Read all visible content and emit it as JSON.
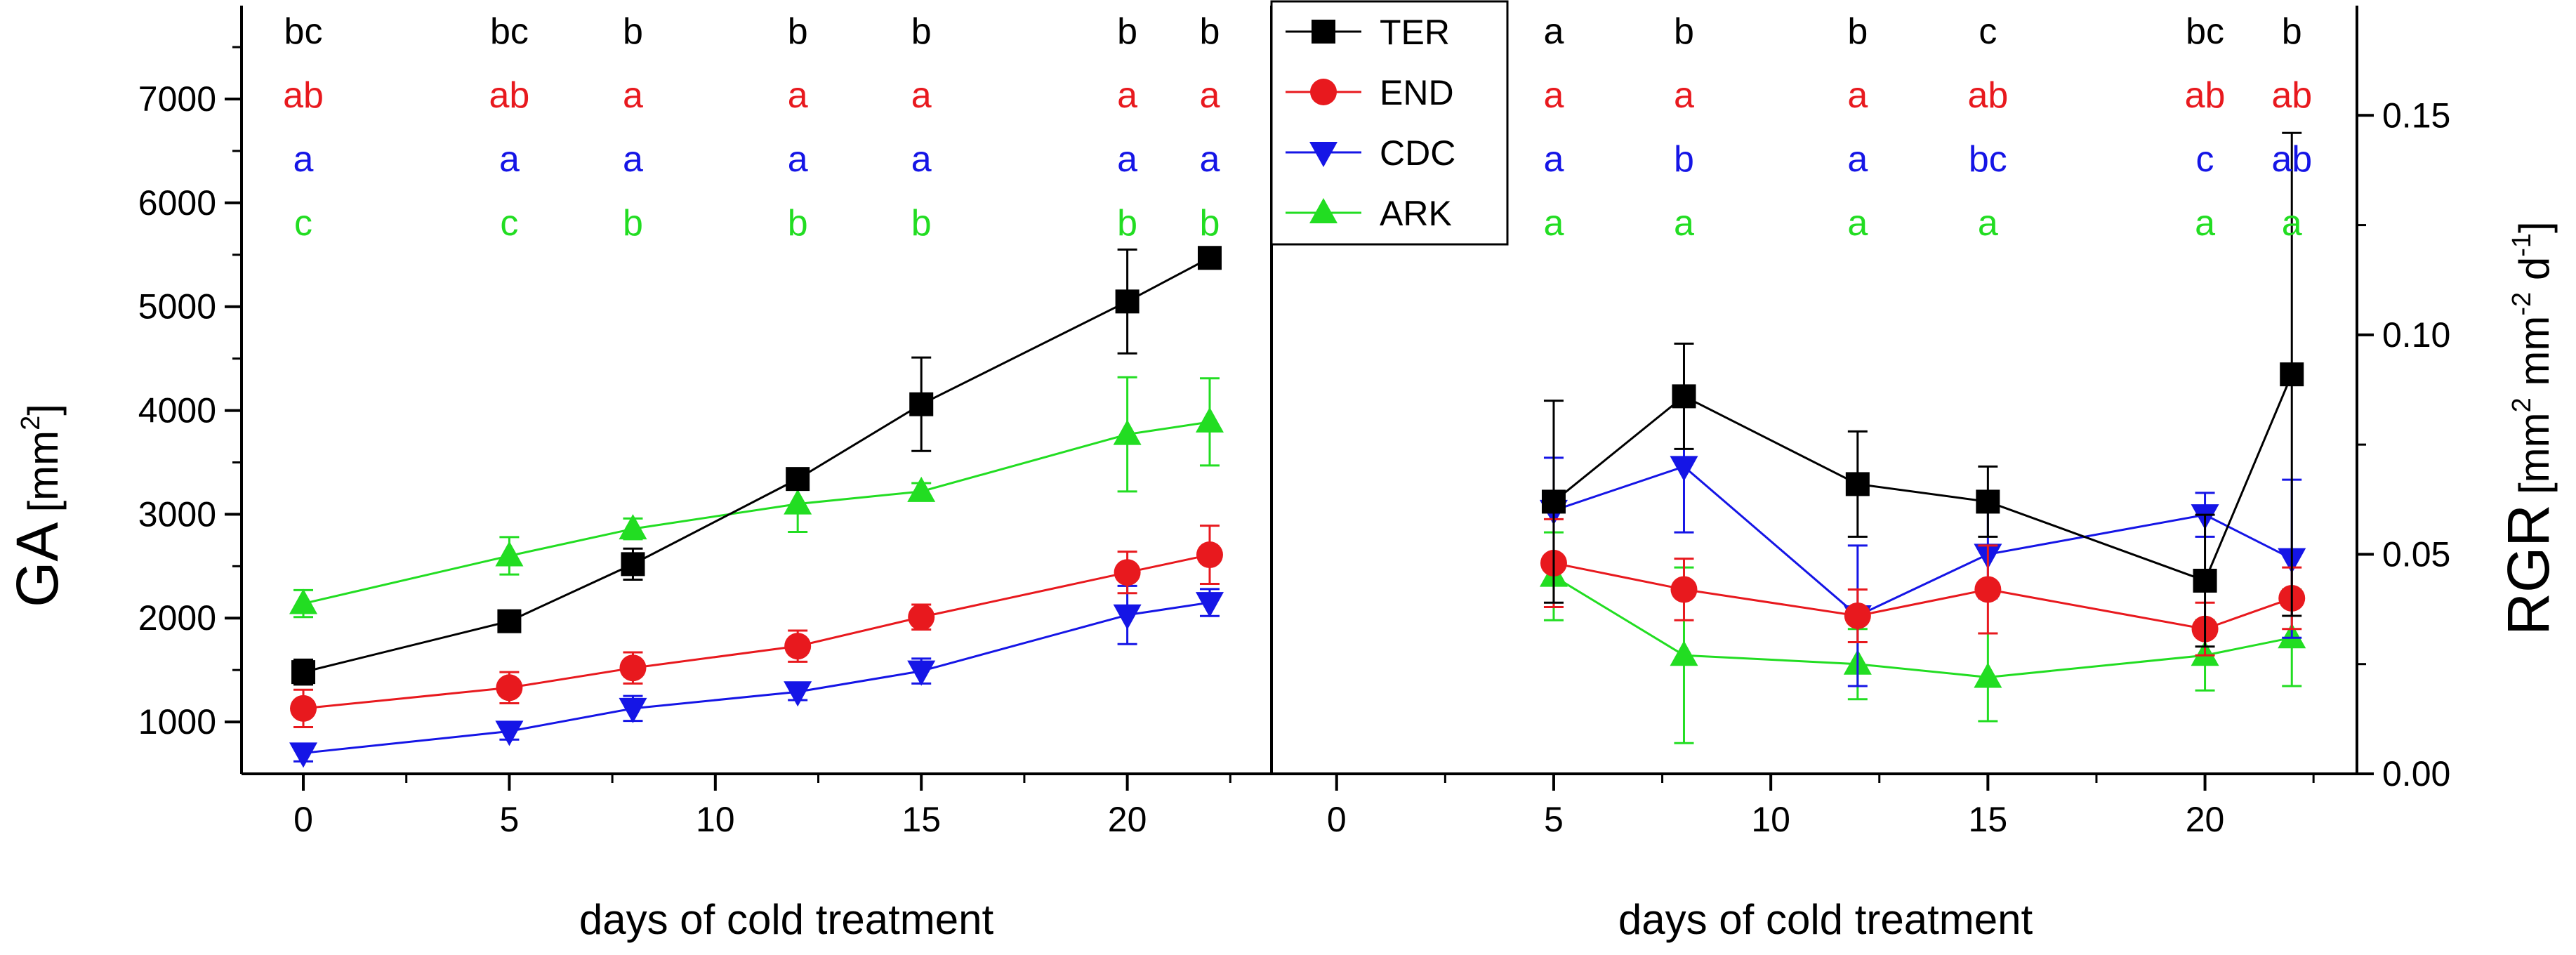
{
  "colors": {
    "TER": "#000000",
    "END": "#e8191e",
    "CDC": "#1515e6",
    "ARK": "#22dd22"
  },
  "legend": [
    {
      "name": "TER",
      "marker": "square"
    },
    {
      "name": "END",
      "marker": "circle"
    },
    {
      "name": "CDC",
      "marker": "triangle-down"
    },
    {
      "name": "ARK",
      "marker": "triangle-up"
    }
  ],
  "chart_data": [
    {
      "type": "line",
      "panel": "left",
      "xlabel": "days of cold treatment",
      "ylabel_main": "GA",
      "ylabel_unit": "[mm",
      "ylabel_sup": "2",
      "ylabel_end": "]",
      "xlim": [
        -1.5,
        23.5
      ],
      "ylim": [
        500,
        7900
      ],
      "xticks": [
        0,
        5,
        10,
        15,
        20
      ],
      "yticks": [
        1000,
        2000,
        3000,
        4000,
        5000,
        6000,
        7000
      ],
      "x": [
        0,
        5,
        8,
        12,
        15,
        20,
        22
      ],
      "series": [
        {
          "name": "TER",
          "values": [
            1480,
            1970,
            2520,
            3340,
            4060,
            5050,
            5470
          ],
          "err": [
            120,
            80,
            150,
            80,
            450,
            500,
            100
          ]
        },
        {
          "name": "END",
          "values": [
            1130,
            1330,
            1520,
            1730,
            2010,
            2440,
            2610
          ],
          "err": [
            180,
            150,
            150,
            150,
            120,
            200,
            280
          ]
        },
        {
          "name": "CDC",
          "values": [
            700,
            910,
            1130,
            1290,
            1490,
            2030,
            2150
          ],
          "err": [
            80,
            80,
            120,
            80,
            120,
            280,
            130
          ]
        },
        {
          "name": "ARK",
          "values": [
            2140,
            2600,
            2860,
            3100,
            3220,
            3770,
            3890
          ],
          "err": [
            130,
            180,
            100,
            270,
            80,
            550,
            420
          ]
        }
      ],
      "letters": [
        {
          "series": "TER",
          "labels": [
            "bc",
            "bc",
            "b",
            "b",
            "b",
            "b",
            "b"
          ]
        },
        {
          "series": "END",
          "labels": [
            "ab",
            "ab",
            "a",
            "a",
            "a",
            "a",
            "a"
          ]
        },
        {
          "series": "CDC",
          "labels": [
            "a",
            "a",
            "a",
            "a",
            "a",
            "a",
            "a"
          ]
        },
        {
          "series": "ARK",
          "labels": [
            "c",
            "c",
            "b",
            "b",
            "b",
            "b",
            "b"
          ]
        }
      ]
    },
    {
      "type": "line",
      "panel": "right",
      "xlabel": "days of cold treatment",
      "ylabel_main": "RGR",
      "ylabel_unit": "[mm",
      "ylabel_sup1": "2",
      "ylabel_mid1": " mm",
      "ylabel_sup2": "-2",
      "ylabel_mid2": " d",
      "ylabel_sup3": "-1",
      "ylabel_end": "]",
      "xlim": [
        -1.5,
        23.5
      ],
      "ylim": [
        0,
        0.175
      ],
      "xticks": [
        0,
        5,
        10,
        15,
        20
      ],
      "yticks": [
        "0.00",
        "0.05",
        "0.10",
        "0.15"
      ],
      "ytick_values": [
        0,
        0.05,
        0.1,
        0.15
      ],
      "x": [
        5,
        8,
        12,
        15,
        20,
        22
      ],
      "series": [
        {
          "name": "TER",
          "values": [
            0.062,
            0.086,
            0.066,
            0.062,
            0.044,
            0.091
          ],
          "err": [
            0.023,
            0.012,
            0.012,
            0.008,
            0.015,
            0.055
          ]
        },
        {
          "name": "END",
          "values": [
            0.048,
            0.042,
            0.036,
            0.042,
            0.033,
            0.04
          ],
          "err": [
            0.01,
            0.007,
            0.006,
            0.01,
            0.006,
            0.007
          ]
        },
        {
          "name": "CDC",
          "values": [
            0.06,
            0.07,
            0.036,
            0.05,
            0.059,
            0.049
          ],
          "err": [
            0.012,
            0.015,
            0.016,
            0.01,
            0.005,
            0.018
          ]
        },
        {
          "name": "ARK",
          "values": [
            0.045,
            0.027,
            0.025,
            0.022,
            0.027,
            0.031
          ],
          "err": [
            0.01,
            0.02,
            0.008,
            0.01,
            0.008,
            0.011
          ]
        }
      ],
      "letters": [
        {
          "series": "TER",
          "labels": [
            "a",
            "b",
            "b",
            "c",
            "bc",
            "b"
          ]
        },
        {
          "series": "END",
          "labels": [
            "a",
            "a",
            "a",
            "ab",
            "ab",
            "ab"
          ]
        },
        {
          "series": "CDC",
          "labels": [
            "a",
            "b",
            "a",
            "bc",
            "c",
            "ab"
          ]
        },
        {
          "series": "ARK",
          "labels": [
            "a",
            "a",
            "a",
            "a",
            "a",
            "a"
          ]
        }
      ]
    }
  ]
}
